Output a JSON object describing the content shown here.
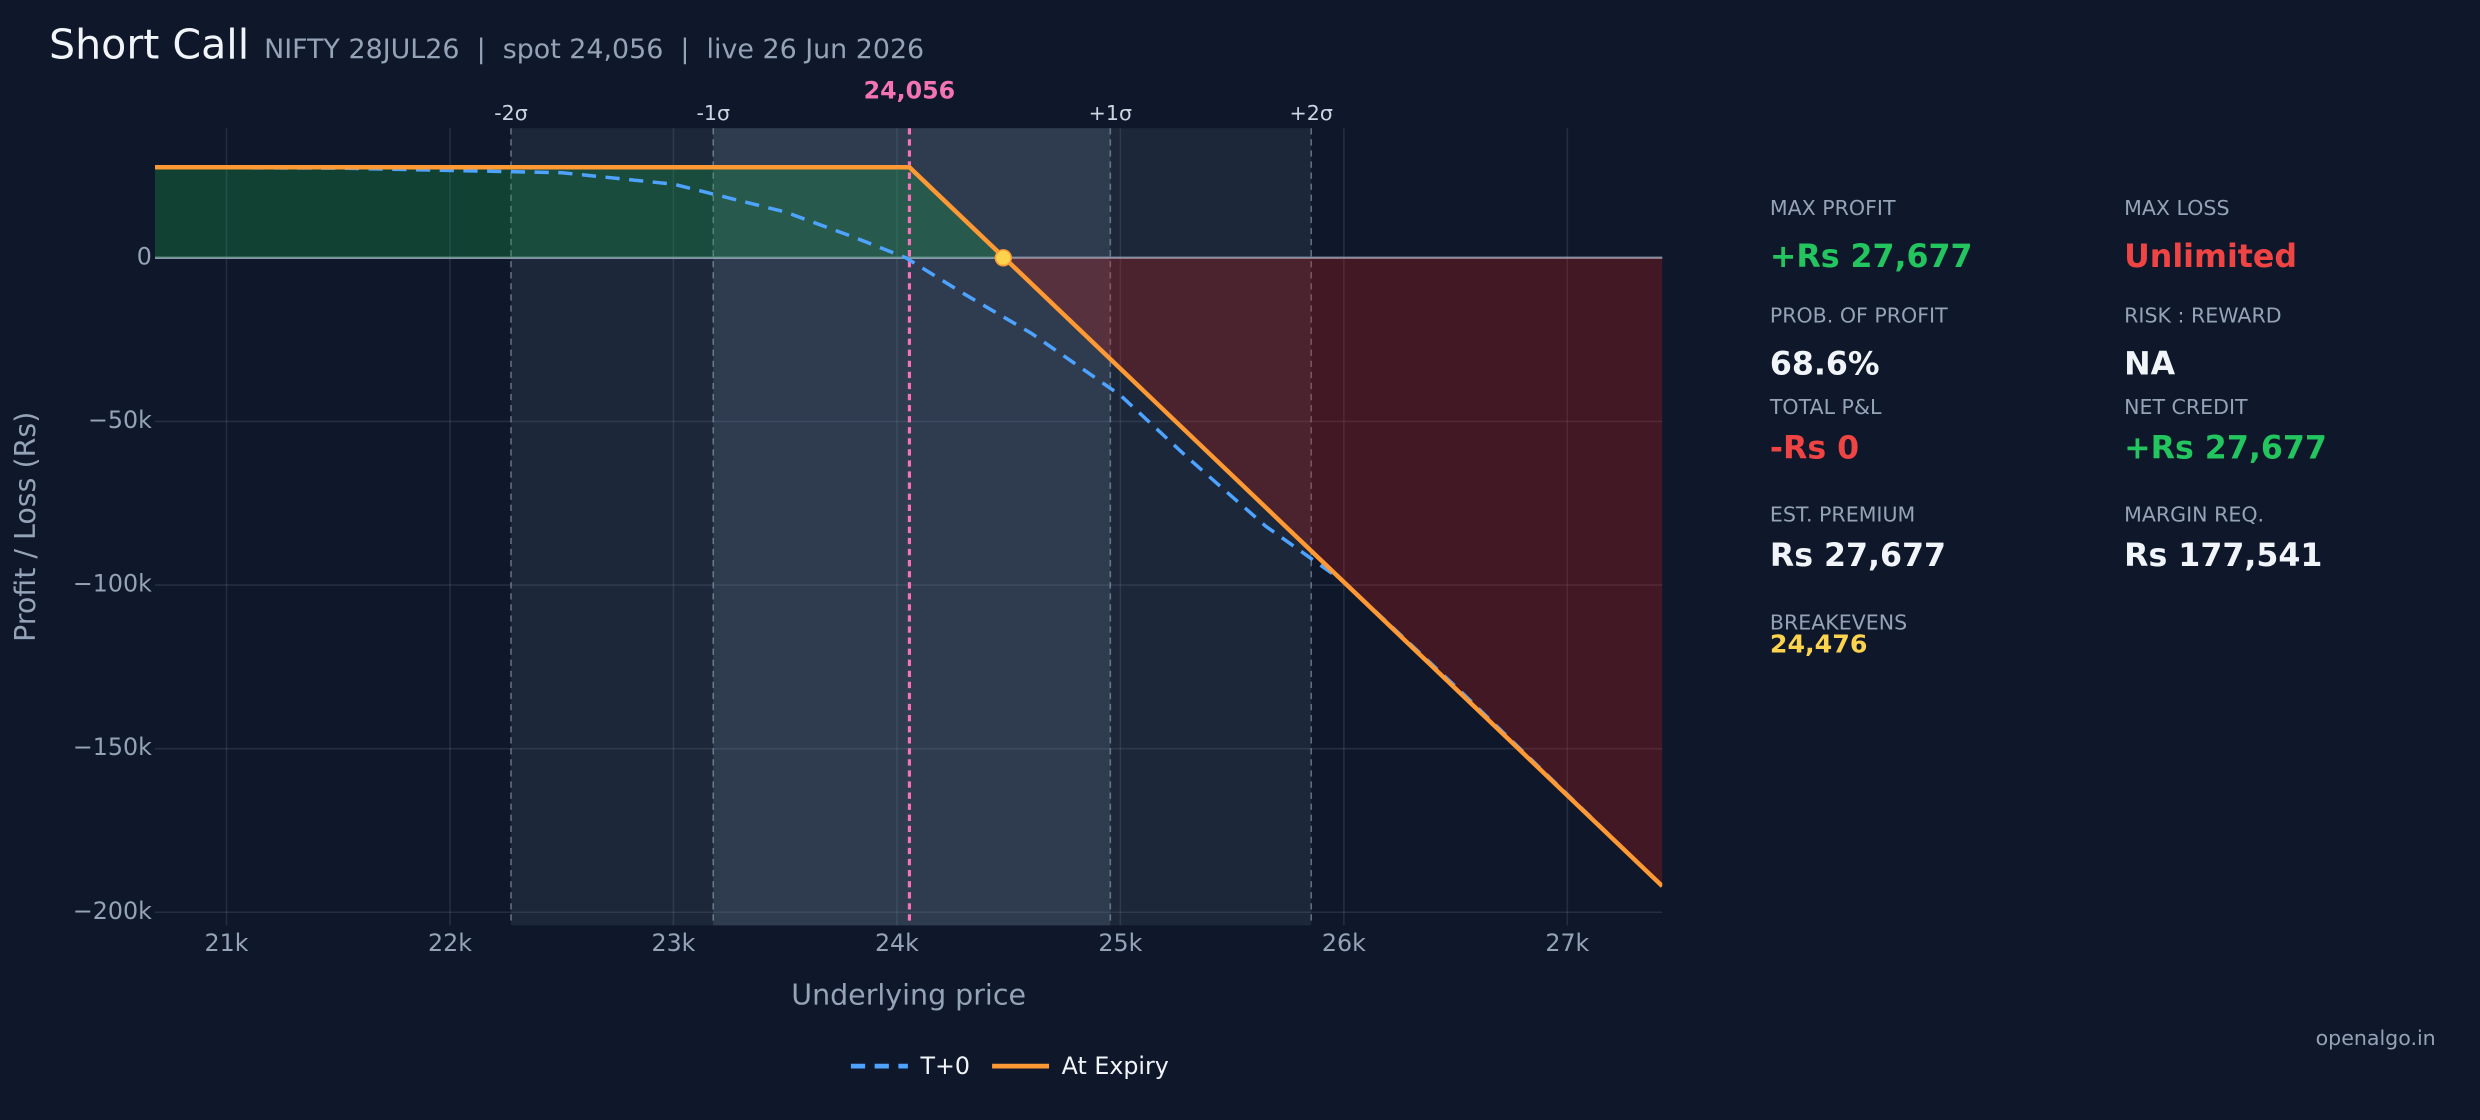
{
  "header": {
    "title": "Short Call",
    "subtitle": "NIFTY 28JUL26  |  spot 24,056  |  live 26 Jun 2026"
  },
  "chart_data": {
    "type": "line",
    "x_label": "Underlying price",
    "y_label": "Profit / Loss (Rs)",
    "xlim": [
      20680,
      27425
    ],
    "ylim": [
      -204000,
      39600
    ],
    "xticks": [
      {
        "value": 21000,
        "label": "21k"
      },
      {
        "value": 22000,
        "label": "22k"
      },
      {
        "value": 23000,
        "label": "23k"
      },
      {
        "value": 24000,
        "label": "24k"
      },
      {
        "value": 25000,
        "label": "25k"
      },
      {
        "value": 26000,
        "label": "26k"
      },
      {
        "value": 27000,
        "label": "27k"
      }
    ],
    "yticks": [
      {
        "value": -200000,
        "label": "−200k"
      },
      {
        "value": -150000,
        "label": "−150k"
      },
      {
        "value": -100000,
        "label": "−100k"
      },
      {
        "value": -50000,
        "label": "−50k"
      },
      0
    ],
    "grid": true,
    "series": [
      {
        "name": "T+0",
        "color": "#4da3ff",
        "dash": true,
        "x": [
          20680,
          21500,
          22500,
          23000,
          23500,
          23800,
          24040,
          24300,
          24600,
          25000,
          25300,
          25650,
          26000,
          26500,
          27425
        ],
        "values": [
          27600,
          27400,
          26000,
          22500,
          14000,
          6500,
          0,
          -11000,
          -23000,
          -42000,
          -61000,
          -82000,
          -99000,
          -131000,
          -192000
        ]
      },
      {
        "name": "At Expiry",
        "color": "#ff9933",
        "dash": false,
        "x": [
          20680,
          24056,
          27425
        ],
        "values": [
          27677,
          27677,
          -192000
        ]
      }
    ],
    "sigma_lines": [
      {
        "value": 22273,
        "label": "-2σ"
      },
      {
        "value": 23178,
        "label": "-1σ"
      },
      {
        "value": 24955,
        "label": "+1σ"
      },
      {
        "value": 25854,
        "label": "+2σ"
      }
    ],
    "spot_line": {
      "value": 24056,
      "label": "24,056"
    },
    "breakeven": {
      "value": 24476,
      "label": "24,476"
    }
  },
  "stats": [
    {
      "label": "MAX PROFIT",
      "value": "+Rs 27,677",
      "color": "#22c55e"
    },
    {
      "label": "MAX LOSS",
      "value": "Unlimited",
      "color": "#ef4444"
    },
    {
      "label": "PROB. OF PROFIT",
      "value": "68.6%",
      "color": "#f1f5f9"
    },
    {
      "label": "RISK : REWARD",
      "value": "NA",
      "color": "#f1f5f9"
    },
    {
      "label": "TOTAL P&L",
      "value": "-Rs 0",
      "color": "#ef4444"
    },
    {
      "label": "NET CREDIT",
      "value": "+Rs 27,677",
      "color": "#22c55e"
    },
    {
      "label": "EST. PREMIUM",
      "value": "Rs 27,677",
      "color": "#f1f5f9"
    },
    {
      "label": "MARGIN REQ.",
      "value": "Rs 177,541",
      "color": "#f1f5f9"
    }
  ],
  "breakevens_label": "BREAKEVENS",
  "footer": "openalgo.in"
}
